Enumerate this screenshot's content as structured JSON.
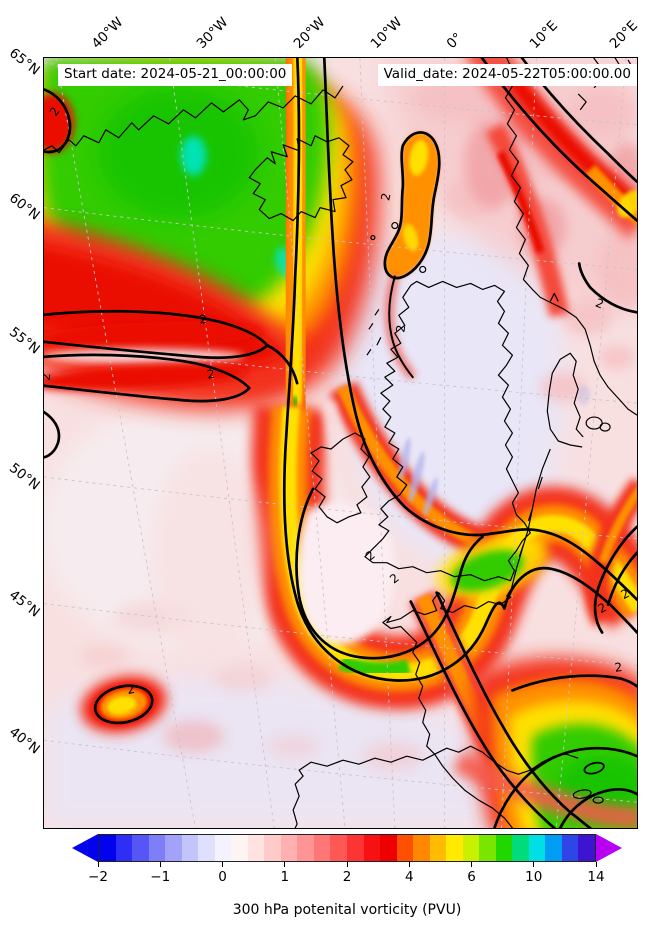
{
  "header": {
    "start_date_label": "Start date: 2024-05-21_00:00:00",
    "valid_date_label": "Valid_date: 2024-05-22T05:00:00.00"
  },
  "axes": {
    "top_labels": [
      "40°W",
      "30°W",
      "20°W",
      "10°W",
      "0°",
      "10°E",
      "20°E"
    ],
    "left_labels": [
      "65°N",
      "60°N",
      "55°N",
      "50°N",
      "45°N",
      "40°N"
    ]
  },
  "map": {
    "contour_label": "2",
    "contour_line_level_pvu": 2,
    "palette": {
      "green": "#33cc00",
      "green2": "#17c400",
      "yellow": "#ffe000",
      "orange": "#ff9000",
      "red": "#f3301f",
      "red2": "#ea0d00",
      "redsoft": "#f4483a",
      "pink": "#f5bfc1",
      "pinkdeep": "#f19fa2",
      "palepink": "#f8e0e1",
      "lavender": "#e9e6f7",
      "pocket": "#fbedf1",
      "periwinkle": "#b4b4ec",
      "cyan": "#00e6c8",
      "grid": "#c9c2cc",
      "coast": "#000000"
    }
  },
  "colorbar": {
    "tick_labels": [
      "−2",
      "−1",
      "0",
      "1",
      "2",
      "4",
      "6",
      "10",
      "14"
    ],
    "left_arrow_color": "#0202ec",
    "right_arrow_color": "#b800f2",
    "segment_colors": [
      "#0202ec",
      "#2e2ef4",
      "#5656f7",
      "#7e7ef9",
      "#a2a2fb",
      "#c4c4fd",
      "#e0e0fe",
      "#f4f2ff",
      "#fff4f4",
      "#ffe2e2",
      "#ffcaca",
      "#ffb0b0",
      "#ff9494",
      "#ff7676",
      "#ff5656",
      "#fc3434",
      "#f61212",
      "#ee0000",
      "#ff4f00",
      "#ff8800",
      "#ffbc00",
      "#ffea00",
      "#c9f000",
      "#78e600",
      "#20d800",
      "#00dc7c",
      "#00e0e4",
      "#009df2",
      "#2e46e8",
      "#3c14d2"
    ]
  },
  "caption": "300 hPa potenital vorticity (PVU)",
  "chart_data": {
    "type": "heatmap",
    "subtype": "filled_contour_weather_map",
    "title": "300 hPa potenital vorticity (PVU)",
    "start_date": "2024-05-21_00:00:00",
    "valid_date": "2024-05-22T05:00:00.00",
    "variable": "300 hPa potential vorticity",
    "units": "PVU",
    "colorbar_levels": [
      -2,
      -1,
      0,
      1,
      2,
      4,
      6,
      10,
      14
    ],
    "colorbar_extend": "both",
    "x_tick_labels_longitude": [
      "40°W",
      "30°W",
      "20°W",
      "10°W",
      "0°",
      "10°E",
      "20°E"
    ],
    "y_tick_labels_latitude": [
      "65°N",
      "60°N",
      "55°N",
      "50°N",
      "45°N",
      "40°N"
    ],
    "bold_contour_level_pvu": 2,
    "features": [
      "High PV reservoir (4-10 PVU, green/yellow) over the Iceland - Greenland sector in the northwest",
      "Cyan maxima (>10 PVU) embedded in the green area near 62N 35W and 60N 25W",
      "Thick black 2-PVU contour bounding a meridional PV streamer running from Iceland south to the Bay of Biscay",
      "Streamer ends in a cyclonically wrapped hook with green core (6-10 PVU) near 43N 15W and a pale low-PV pocket inside",
      "Streamer tail extends northeast over the English Channel with green patch over southeast England, then southeast across France",
      "Cut-off vortex (2-6 PVU, yellow core) outlined by a 2-PVU contour near 41N 36W",
      "Comma-shaped 2-PVU filament with orange/yellow core near 61N 21W west of Norway",
      "Elevated PV band (red with orange core) across southern Norway / Scandinavia in the upper right",
      "High PV region (green/yellow, red surround) over northeast Spain and the western Mediterranean in the lower right",
      "Low PV (<1 PVU, pale lavender/white) over the North Sea, British Isles and the central Atlantic"
    ]
  }
}
